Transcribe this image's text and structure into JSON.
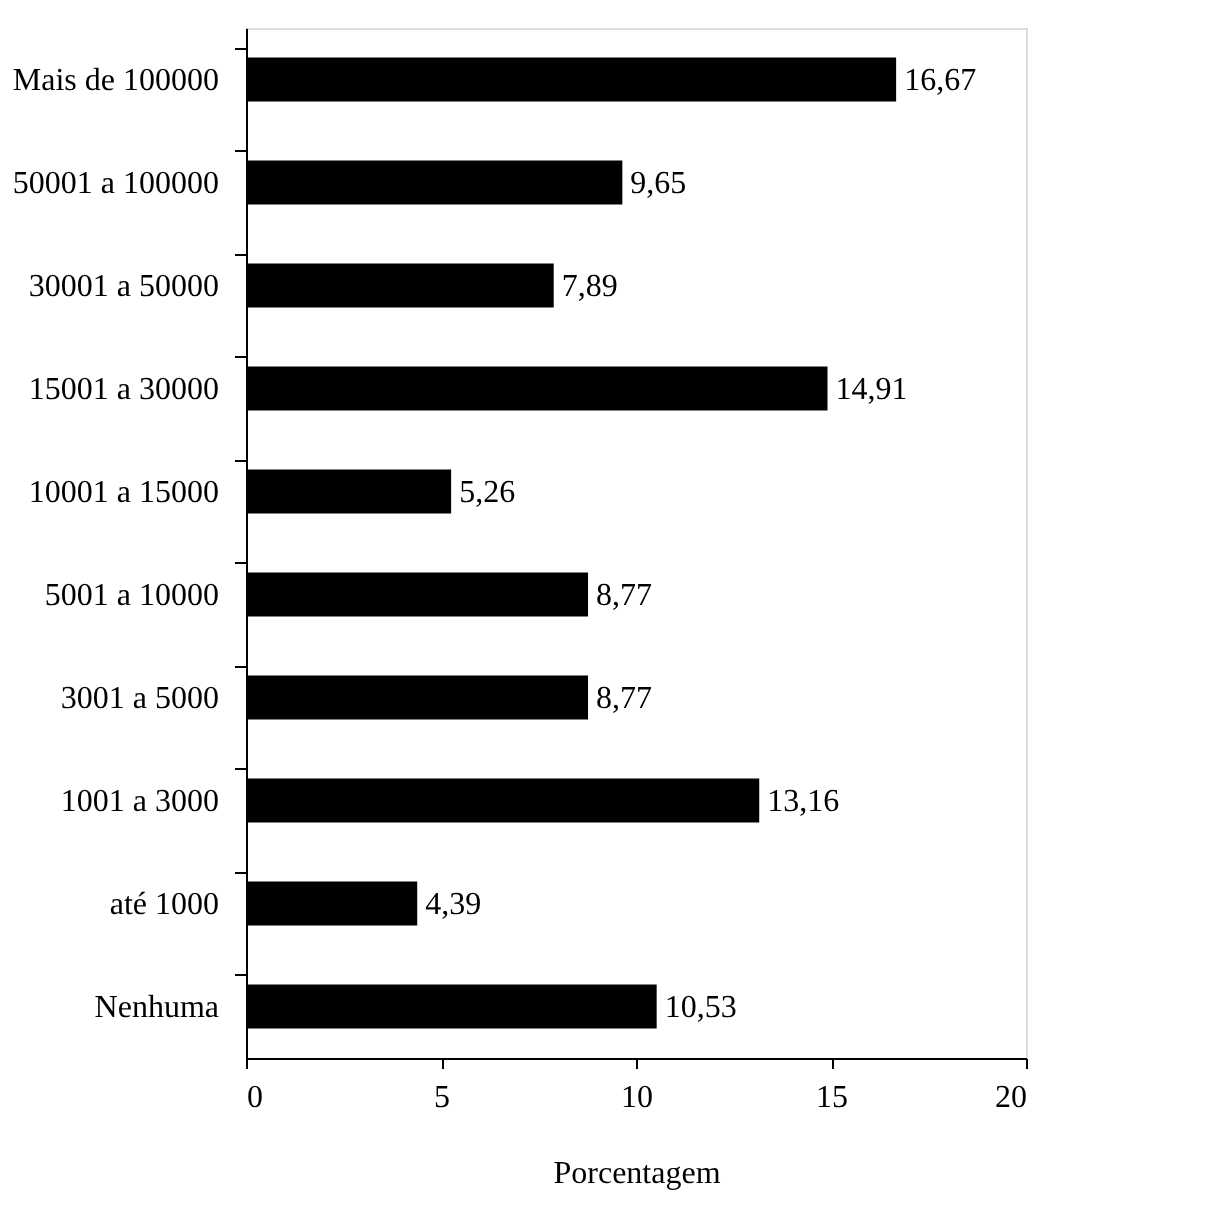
{
  "chart_data": {
    "type": "bar",
    "orientation": "horizontal",
    "xlabel": "Porcentagem",
    "categories": [
      "Mais de 100000",
      "50001 a 100000",
      "30001 a 50000",
      "15001 a 30000",
      "10001 a 15000",
      "5001 a 10000",
      "3001 a 5000",
      "1001 a 3000",
      "até 1000",
      "Nenhuma"
    ],
    "values": [
      16.67,
      9.65,
      7.89,
      14.91,
      5.26,
      8.77,
      8.77,
      13.16,
      4.39,
      10.53
    ],
    "value_labels": [
      "16,67",
      "9,65",
      "7,89",
      "14,91",
      "5,26",
      "8,77",
      "8,77",
      "13,16",
      "4,39",
      "10,53"
    ],
    "color": "#000000",
    "xlim": [
      0,
      20
    ],
    "xticks": [
      0,
      5,
      10,
      15,
      20
    ],
    "grid": false
  }
}
